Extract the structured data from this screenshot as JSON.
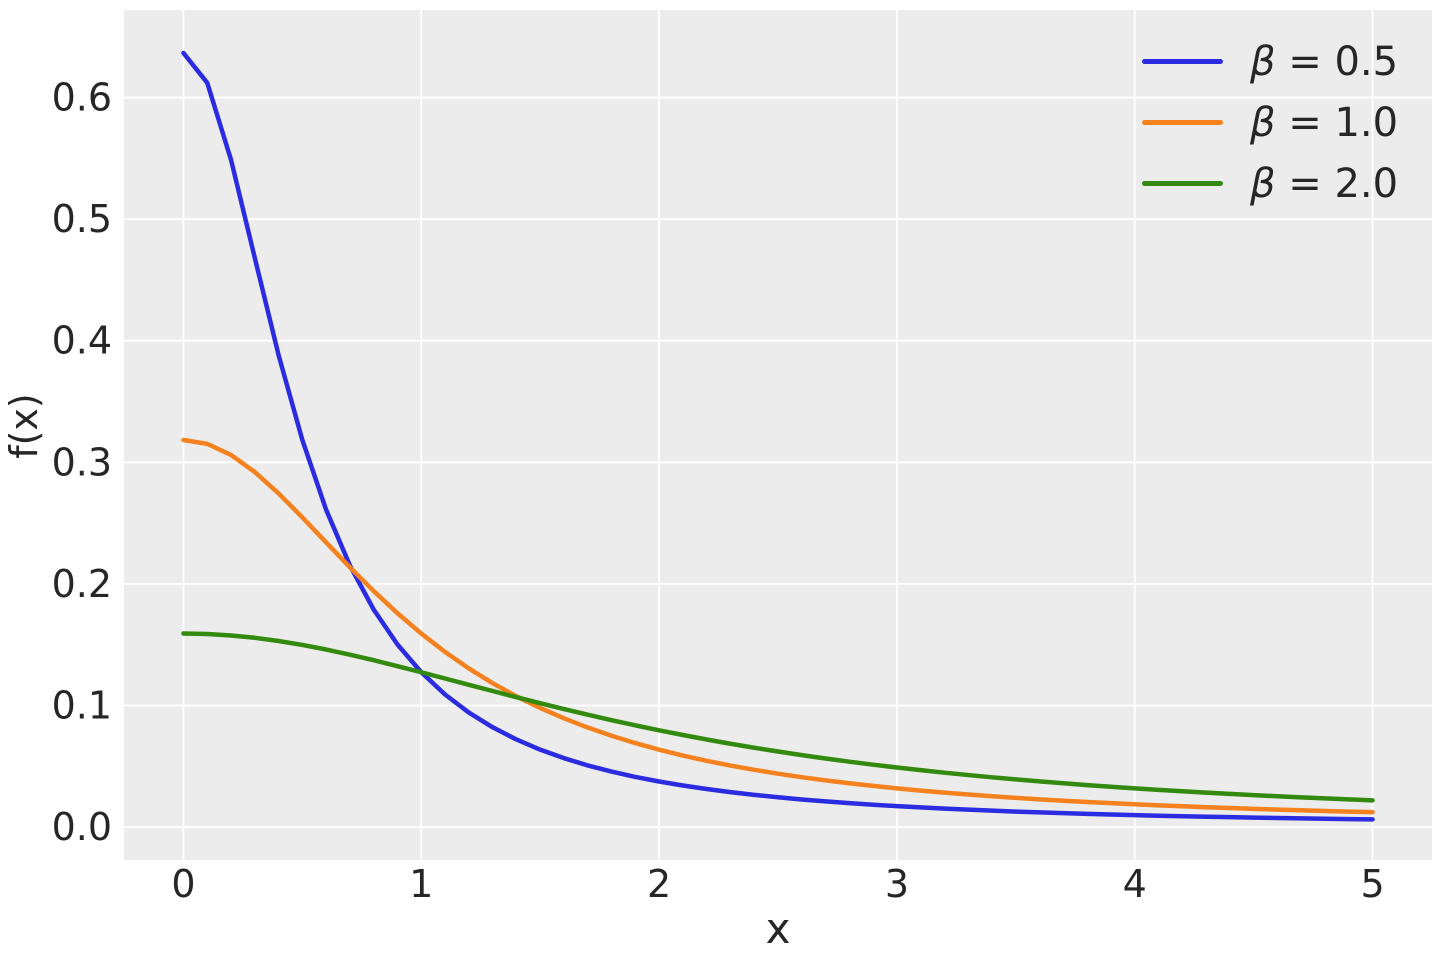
{
  "colors": {
    "plot_background": "#ececec",
    "grid": "#ffffff",
    "text": "#262626"
  },
  "chart_data": {
    "type": "line",
    "title": "",
    "xlabel": "x",
    "ylabel": "f(x)",
    "xlim": [
      -0.25,
      5.25
    ],
    "ylim": [
      -0.0271,
      0.672
    ],
    "xticks": [
      0,
      1,
      2,
      3,
      4,
      5
    ],
    "xtick_labels": [
      "0",
      "1",
      "2",
      "3",
      "4",
      "5"
    ],
    "yticks": [
      0.0,
      0.1,
      0.2,
      0.3,
      0.4,
      0.5,
      0.6
    ],
    "ytick_labels": [
      "0.0",
      "0.1",
      "0.2",
      "0.3",
      "0.4",
      "0.5",
      "0.6"
    ],
    "grid": true,
    "legend_position": "upper right",
    "x": [
      0,
      0.1,
      0.2,
      0.3,
      0.4,
      0.5,
      0.6,
      0.7,
      0.8,
      0.9,
      1.0,
      1.1,
      1.2,
      1.3,
      1.4,
      1.5,
      1.6,
      1.7,
      1.8,
      1.9,
      2.0,
      2.1,
      2.2,
      2.3,
      2.4,
      2.5,
      2.6,
      2.7,
      2.8,
      2.9,
      3.0,
      3.1,
      3.2,
      3.3,
      3.4,
      3.5,
      3.6,
      3.7,
      3.8,
      3.9,
      4.0,
      4.1,
      4.2,
      4.3,
      4.4,
      4.5,
      4.6,
      4.7,
      4.8,
      4.9,
      5.0
    ],
    "series": [
      {
        "name": "β = 0.5",
        "color": "#2b2be1",
        "values": [
          0.63662,
          0.61213,
          0.54881,
          0.4681,
          0.38818,
          0.31831,
          0.26091,
          0.21508,
          0.17882,
          0.15015,
          0.12732,
          0.10901,
          0.09418,
          0.08204,
          0.07202,
          0.06366,
          0.05664,
          0.05068,
          0.0456,
          0.04123,
          0.03745,
          0.03415,
          0.03127,
          0.02873,
          0.02648,
          0.02449,
          0.0227,
          0.02111,
          0.01967,
          0.01838,
          0.01721,
          0.01614,
          0.01517,
          0.01429,
          0.01348,
          0.01273,
          0.01205,
          0.01142,
          0.01083,
          0.01029,
          0.00979,
          0.00933,
          0.0089,
          0.00849,
          0.00812,
          0.00776,
          0.00743,
          0.00712,
          0.00683,
          0.00656,
          0.0063
        ]
      },
      {
        "name": "β = 1.0",
        "color": "#f5821e",
        "values": [
          0.31831,
          0.31516,
          0.30607,
          0.29203,
          0.2744,
          0.25465,
          0.23405,
          0.21363,
          0.19409,
          0.17586,
          0.15915,
          0.14403,
          0.13045,
          0.11833,
          0.10754,
          0.09794,
          0.08942,
          0.08183,
          0.07508,
          0.06905,
          0.06366,
          0.05884,
          0.0545,
          0.05061,
          0.04709,
          0.04391,
          0.04102,
          0.0384,
          0.03601,
          0.03383,
          0.03183,
          0.03,
          0.02832,
          0.02677,
          0.02534,
          0.02402,
          0.0228,
          0.02167,
          0.02062,
          0.01964,
          0.01872,
          0.01787,
          0.01708,
          0.01633,
          0.01563,
          0.01498,
          0.01436,
          0.01379,
          0.01324,
          0.01273,
          0.01224
        ]
      },
      {
        "name": "β = 2.0",
        "color": "#348a0e",
        "values": [
          0.15915,
          0.15876,
          0.15758,
          0.15565,
          0.15303,
          0.14979,
          0.14601,
          0.14178,
          0.1372,
          0.13235,
          0.12732,
          0.12219,
          0.11702,
          0.11189,
          0.10681,
          0.10186,
          0.09705,
          0.0924,
          0.08793,
          0.08366,
          0.07958,
          0.0757,
          0.07201,
          0.06853,
          0.06523,
          0.06211,
          0.05917,
          0.05639,
          0.05377,
          0.0513,
          0.04897,
          0.04678,
          0.04471,
          0.04276,
          0.04091,
          0.03918,
          0.03754,
          0.03599,
          0.03452,
          0.03314,
          0.03183,
          0.03059,
          0.02942,
          0.02831,
          0.02725,
          0.02625,
          0.0253,
          0.0244,
          0.02354,
          0.02273,
          0.02195
        ]
      }
    ]
  }
}
